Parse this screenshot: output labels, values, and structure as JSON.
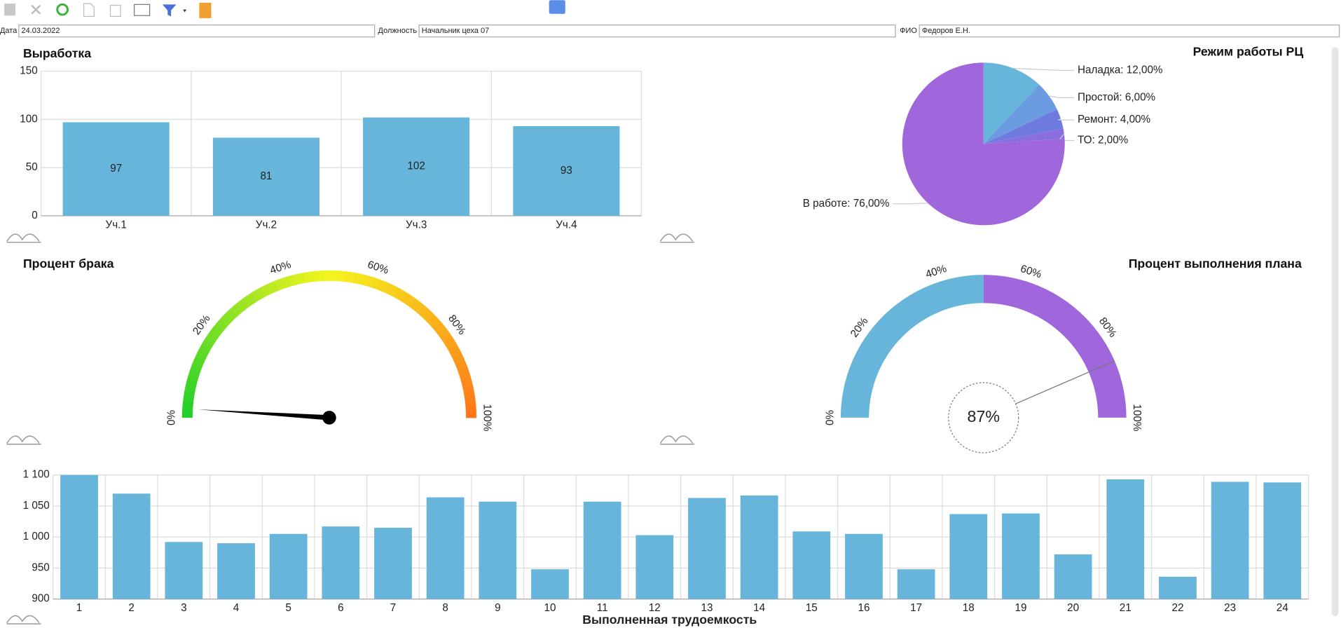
{
  "form": {
    "fields": [
      {
        "label": "Дата",
        "value": "24.03.2022"
      },
      {
        "label": "Должность",
        "value": "Начальник цеха 07"
      },
      {
        "label": "ФИО",
        "value": "Федоров Е.Н."
      }
    ]
  },
  "chart_data": [
    {
      "type": "bar",
      "title": "Выработка",
      "categories": [
        "Уч.1",
        "Уч.2",
        "Уч.3",
        "Уч.4"
      ],
      "values": [
        97,
        81,
        102,
        93
      ],
      "color": "#67b5da",
      "ylim": [
        0,
        150
      ],
      "yticks": [
        0,
        50,
        100,
        150
      ],
      "grid": true,
      "data_labels": true
    },
    {
      "type": "pie",
      "title": "Режим работы РЦ",
      "labels": [
        "Наладка: 12,00%",
        "Простой: 6,00%",
        "Ремонт: 4,00%",
        "ТО: 2,00%",
        "В работе: 76,00%"
      ],
      "values": [
        12,
        6,
        4,
        2,
        76
      ],
      "colors": [
        "#67b5da",
        "#6b9be0",
        "#6f7ae0",
        "#8a6ee0",
        "#a066dc"
      ]
    },
    {
      "type": "gauge",
      "title": "Процент брака",
      "ylim": [
        0,
        100
      ],
      "yticks": [
        {
          "value": 0,
          "label": "0%"
        },
        {
          "value": 20,
          "label": "20%"
        },
        {
          "value": 40,
          "label": "40%"
        },
        {
          "value": 60,
          "label": "60%"
        },
        {
          "value": 80,
          "label": "80%"
        },
        {
          "value": 100,
          "label": "100%"
        }
      ],
      "gradient": [
        "#1ecf2a",
        "#f5f51f",
        "#ff7518"
      ],
      "value": 2
    },
    {
      "type": "gauge",
      "title": "Процент выполнения плана",
      "ylim": [
        0,
        100
      ],
      "yticks": [
        {
          "value": 0,
          "label": "0%"
        },
        {
          "value": 20,
          "label": "20%"
        },
        {
          "value": 40,
          "label": "40%"
        },
        {
          "value": 60,
          "label": "60%"
        },
        {
          "value": 80,
          "label": "80%"
        },
        {
          "value": 100,
          "label": "100%"
        }
      ],
      "bands": [
        {
          "from": 0,
          "to": 50,
          "color": "#67b5da"
        },
        {
          "from": 50,
          "to": 100,
          "color": "#a066dc"
        }
      ],
      "value": 87,
      "value_label": "87%"
    },
    {
      "type": "bar",
      "xlabel": "Выполненная трудоемкость",
      "categories": [
        "1",
        "2",
        "3",
        "4",
        "5",
        "6",
        "7",
        "8",
        "9",
        "10",
        "11",
        "12",
        "13",
        "14",
        "15",
        "16",
        "17",
        "18",
        "19",
        "20",
        "21",
        "22",
        "23",
        "24"
      ],
      "values": [
        1100,
        1070,
        992,
        990,
        1005,
        1017,
        1015,
        1064,
        1057,
        948,
        1057,
        1003,
        1063,
        1067,
        1009,
        1005,
        948,
        1037,
        1038,
        972,
        1093,
        936,
        1089,
        1088
      ],
      "color": "#67b5da",
      "ylim": [
        900,
        1100
      ],
      "yticks": [
        {
          "value": 900,
          "label": "900"
        },
        {
          "value": 950,
          "label": "950"
        },
        {
          "value": 1000,
          "label": "1 000"
        },
        {
          "value": 1050,
          "label": "1 050"
        },
        {
          "value": 1100,
          "label": "1 100"
        }
      ],
      "grid": true,
      "data_labels": false
    }
  ]
}
